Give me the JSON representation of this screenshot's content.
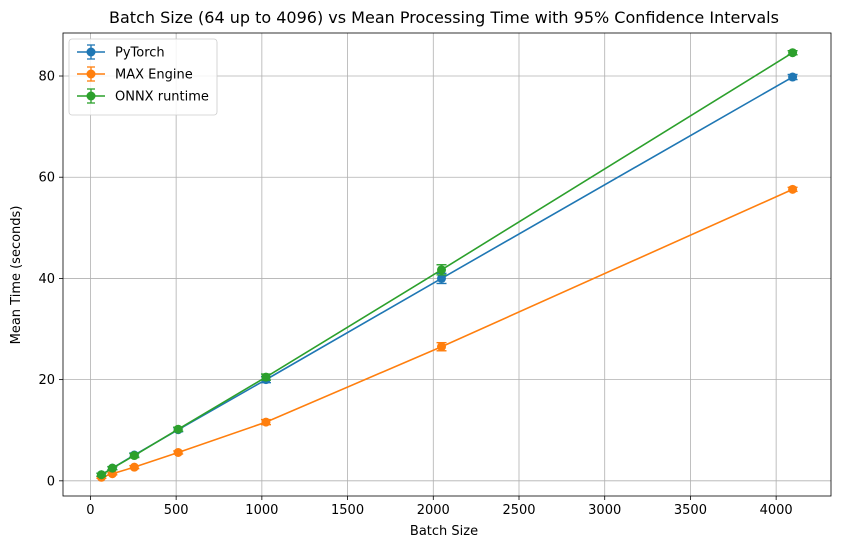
{
  "chart_data": {
    "type": "line",
    "title": "Batch Size (64 up to 4096) vs Mean Processing Time with 95% Confidence Intervals",
    "xlabel": "Batch Size",
    "ylabel": "Mean Time (seconds)",
    "xlim": [
      -160,
      4320
    ],
    "ylim": [
      -3.0,
      88.5
    ],
    "xticks": [
      0,
      500,
      1000,
      1500,
      2000,
      2500,
      3000,
      3500,
      4000
    ],
    "yticks": [
      0,
      20,
      40,
      60,
      80
    ],
    "grid": true,
    "legend_position": "upper-left",
    "x": [
      64,
      128,
      256,
      512,
      1024,
      2048,
      4096
    ],
    "series": [
      {
        "name": "PyTorch",
        "color": "#1f77b4",
        "values": [
          1.2,
          2.5,
          5.1,
          10.1,
          20.0,
          40.0,
          79.8
        ],
        "ci": [
          0.3,
          0.3,
          0.4,
          0.4,
          0.6,
          1.0,
          0.5
        ]
      },
      {
        "name": "MAX Engine",
        "color": "#ff7f0e",
        "values": [
          0.7,
          1.4,
          2.7,
          5.6,
          11.6,
          26.5,
          57.6
        ],
        "ci": [
          0.2,
          0.2,
          0.3,
          0.3,
          0.5,
          0.8,
          0.4
        ]
      },
      {
        "name": "ONNX runtime",
        "color": "#2ca02c",
        "values": [
          1.2,
          2.5,
          5.0,
          10.2,
          20.5,
          41.7,
          84.6
        ],
        "ci": [
          0.3,
          0.3,
          0.4,
          0.4,
          0.6,
          1.0,
          0.4
        ]
      }
    ]
  }
}
